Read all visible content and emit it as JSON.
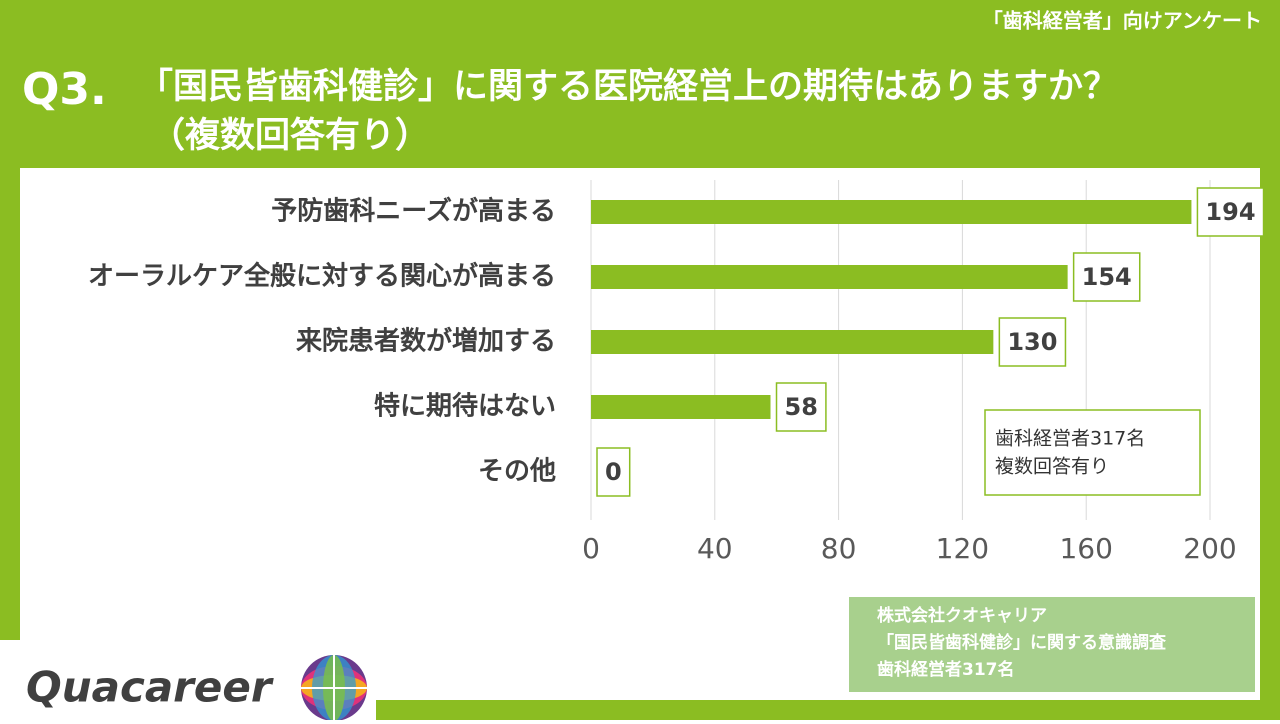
{
  "header": {
    "tag": "「歯科経営者」向けアンケート",
    "question_no": "Q3.",
    "title": "「国民皆歯科健診」に関する医院経営上の期待はありますか？",
    "subtitle": "（複数回答有り）"
  },
  "chart_data": {
    "type": "bar",
    "orientation": "horizontal",
    "categories": [
      "予防歯科ニーズが高まる",
      "オーラルケア全般に対する関心が高まる",
      "来院患者数が増加する",
      "特に期待はない",
      "その他"
    ],
    "values": [
      194,
      154,
      130,
      58,
      0
    ],
    "color": "#8bbd22",
    "xlim": [
      0,
      200
    ],
    "xticks": [
      0,
      40,
      80,
      120,
      160,
      200
    ],
    "grid": true,
    "annotations": [
      "歯科経営者317名",
      "複数回答有り"
    ]
  },
  "source": [
    "株式会社クオキャリア",
    "「国民皆歯科健診」に関する意識調査",
    "歯科経営者317名"
  ],
  "logo": "Quacareer"
}
